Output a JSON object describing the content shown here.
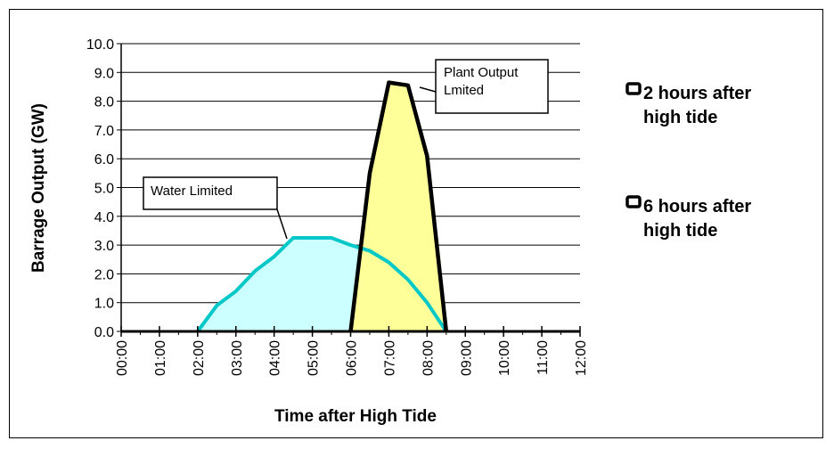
{
  "chart_data": {
    "type": "area",
    "xlabel": "Time after High Tide",
    "ylabel": "Barrage Output (GW)",
    "x_ticks": [
      "00:00",
      "01:00",
      "02:00",
      "03:00",
      "04:00",
      "05:00",
      "06:00",
      "07:00",
      "08:00",
      "09:00",
      "10:00",
      "11:00",
      "12:00"
    ],
    "y_ticks": [
      "0.0",
      "1.0",
      "2.0",
      "3.0",
      "4.0",
      "5.0",
      "6.0",
      "7.0",
      "8.0",
      "9.0",
      "10.0"
    ],
    "xlim": [
      0,
      12
    ],
    "ylim": [
      0,
      10
    ],
    "grid": "horizontal",
    "legend_position": "right",
    "series": [
      {
        "name": "2 hours after high tide",
        "color": "#00c8c8",
        "fill": "#ccffff",
        "x": [
          2.0,
          2.5,
          3.0,
          3.5,
          4.0,
          4.5,
          5.0,
          5.5,
          6.0,
          6.5,
          7.0,
          7.5,
          8.0,
          8.5
        ],
        "y": [
          0.0,
          0.9,
          1.4,
          2.1,
          2.6,
          3.25,
          3.25,
          3.25,
          3.0,
          2.8,
          2.4,
          1.8,
          1.0,
          0.0
        ]
      },
      {
        "name": "6 hours after high tide",
        "color": "#000000",
        "fill": "#ffff99",
        "x": [
          6.0,
          6.5,
          7.0,
          7.5,
          8.0,
          8.5
        ],
        "y": [
          0.0,
          5.5,
          8.65,
          8.55,
          6.1,
          0.0
        ]
      }
    ],
    "annotations": [
      {
        "text": "Water Limited",
        "target_x": 4.4,
        "target_y": 3.25
      },
      {
        "text_lines": [
          "Plant Output",
          "Lmited"
        ],
        "target_x": 7.3,
        "target_y": 8.6
      }
    ]
  }
}
